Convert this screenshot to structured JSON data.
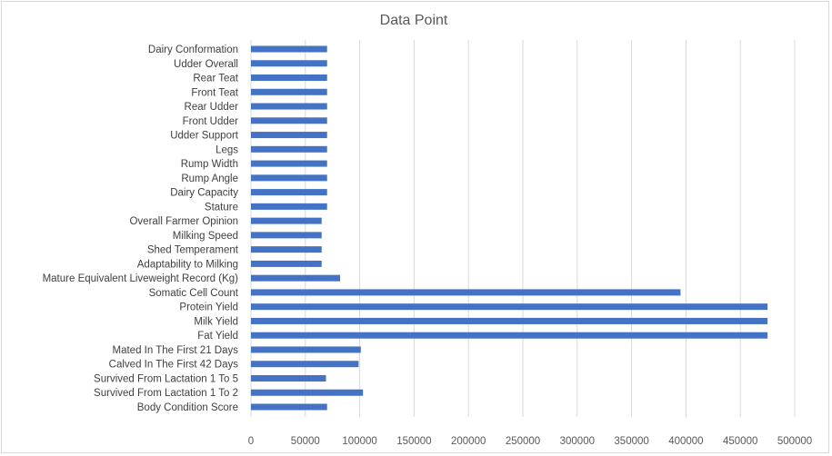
{
  "chart_data": {
    "type": "bar",
    "orientation": "horizontal",
    "title": "Data Point",
    "xlabel": "",
    "ylabel": "",
    "xlim": [
      0,
      500000
    ],
    "x_ticks": [
      0,
      50000,
      100000,
      150000,
      200000,
      250000,
      300000,
      350000,
      400000,
      450000,
      500000
    ],
    "grid": true,
    "legend": "none",
    "bar_color": "#4472c4",
    "categories": [
      "Dairy Conformation",
      "Udder Overall",
      "Rear Teat",
      "Front Teat",
      "Rear Udder",
      "Front Udder",
      "Udder Support",
      "Legs",
      "Rump Width",
      "Rump Angle",
      "Dairy Capacity",
      "Stature",
      "Overall Farmer Opinion",
      "Milking Speed",
      "Shed Temperament",
      "Adaptability to Milking",
      "Mature Equivalent Liveweight Record (Kg)",
      "Somatic Cell Count",
      "Protein Yield",
      "Milk Yield",
      "Fat Yield",
      "Mated In The First 21 Days",
      "Calved In The First 42 Days",
      "Survived From Lactation 1 To 5",
      "Survived From Lactation 1 To 2",
      "Body Condition Score"
    ],
    "values": [
      70000,
      70000,
      70000,
      70000,
      70000,
      70000,
      70000,
      70000,
      70000,
      70000,
      70000,
      70000,
      65000,
      65000,
      65000,
      65000,
      82000,
      395000,
      475000,
      475000,
      475000,
      101000,
      99000,
      69000,
      103000,
      70000
    ]
  }
}
